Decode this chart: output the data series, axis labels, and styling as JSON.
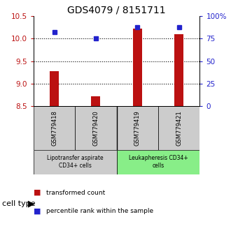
{
  "title": "GDS4079 / 8151711",
  "samples": [
    "GSM779418",
    "GSM779420",
    "GSM779419",
    "GSM779421"
  ],
  "red_values": [
    9.28,
    8.73,
    10.22,
    10.1
  ],
  "blue_percentiles": [
    82,
    75,
    88,
    88
  ],
  "ylim_left": [
    8.5,
    10.5
  ],
  "ylim_right": [
    0,
    100
  ],
  "yticks_left": [
    8.5,
    9.0,
    9.5,
    10.0,
    10.5
  ],
  "yticks_right": [
    0,
    25,
    50,
    75,
    100
  ],
  "ytick_right_labels": [
    "0",
    "25",
    "50",
    "75",
    "100%"
  ],
  "bar_color": "#bb1111",
  "dot_color": "#2222cc",
  "bar_bottom": 8.5,
  "grid_yticks": [
    9.0,
    9.5,
    10.0
  ],
  "cell_types": [
    {
      "label": "Lipotransfer aspirate\nCD34+ cells",
      "color": "#cccccc",
      "samples": [
        0,
        1
      ]
    },
    {
      "label": "Leukapheresis CD34+\ncells",
      "color": "#88ee88",
      "samples": [
        2,
        3
      ]
    }
  ],
  "legend_red": "transformed count",
  "legend_blue": "percentile rank within the sample",
  "cell_type_label": "cell type",
  "title_fontsize": 10,
  "tick_fontsize": 7.5,
  "bar_width": 0.22,
  "dot_size": 5
}
